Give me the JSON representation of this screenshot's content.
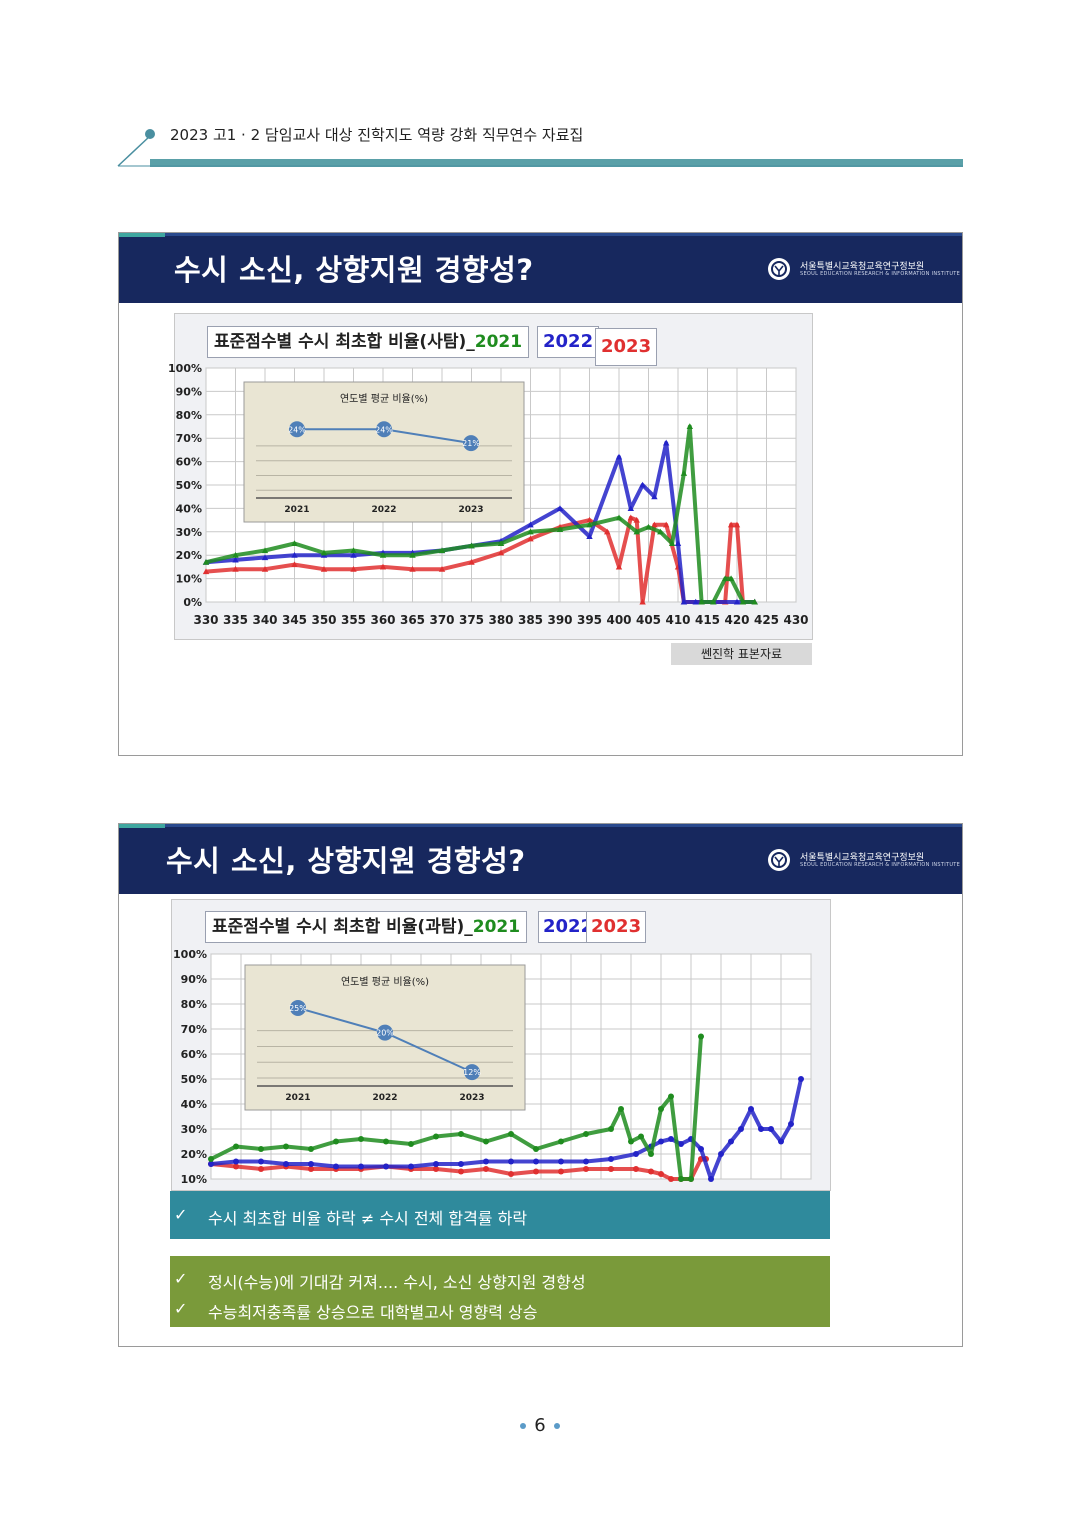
{
  "header": {
    "doc_title": "2023 고1 · 2 담임교사 대상 진학지도 역량 강화 직무연수 자료집"
  },
  "institute": {
    "name": "서울특별시교육청교육연구정보원",
    "name_en": "SEOUL EDUCATION RESEARCH & INFORMATION INSTITUTE"
  },
  "slide1": {
    "title": "수시 소신, 상향지원 경향성?",
    "chart_title": "표준점수별 수시 최초합 비율(사탐)_",
    "year_2021": "2021",
    "year_2022": "2022",
    "year_2023": "2023",
    "source": "쎈진학 표본자료"
  },
  "slide2": {
    "title": "수시 소신, 상향지원 경향성?",
    "chart_title": "표준점수별 수시 최초합 비율(과탐)_",
    "year_2021": "2021",
    "year_2022": "2022",
    "year_2023": "2023",
    "bullet1": "수시 최초합 비율 하락 ≠ 수시 전체 합격률 하락",
    "bullet2": "정시(수능)에 기대감 커져.... 수시, 소신 상향지원 경향성",
    "bullet3": "수능최저충족률 상승으로 대학별고사 영향력 상승",
    "check": "✓"
  },
  "colors": {
    "y2021": "#1f8c1f",
    "y2022": "#2323c8",
    "y2023": "#e03030",
    "navy": "#17285e",
    "teal_bar": "#2f8a9c",
    "green_bar": "#7a9a3a"
  },
  "page": {
    "number": "6"
  },
  "chart_data": [
    {
      "type": "line",
      "title": "표준점수별 수시 최초합 비율(사탐)_2021 2022 2023",
      "x_ticks": [
        330,
        335,
        340,
        345,
        350,
        355,
        360,
        365,
        370,
        375,
        380,
        385,
        390,
        395,
        400,
        405,
        410,
        415,
        420,
        425,
        430
      ],
      "y_ticks": [
        "0%",
        "10%",
        "20%",
        "30%",
        "40%",
        "50%",
        "60%",
        "70%",
        "80%",
        "90%",
        "100%"
      ],
      "xlim": [
        330,
        430
      ],
      "ylim": [
        0,
        100
      ],
      "grid": true,
      "series": [
        {
          "name": "2021",
          "color": "#1f8c1f",
          "x": [
            330,
            335,
            340,
            345,
            350,
            355,
            360,
            365,
            370,
            375,
            380,
            385,
            390,
            395,
            400,
            403,
            405,
            407,
            409,
            411,
            412,
            414,
            416,
            418,
            419,
            421,
            423
          ],
          "values": [
            17,
            20,
            22,
            25,
            21,
            22,
            20,
            20,
            22,
            24,
            25,
            30,
            31,
            33,
            36,
            30,
            32,
            30,
            25,
            55,
            75,
            0,
            0,
            10,
            10,
            0,
            0
          ]
        },
        {
          "name": "2022",
          "color": "#2323c8",
          "x": [
            330,
            335,
            340,
            345,
            350,
            355,
            360,
            365,
            370,
            375,
            380,
            385,
            390,
            395,
            400,
            402,
            404,
            406,
            408,
            410,
            411,
            413,
            416,
            420,
            423
          ],
          "values": [
            17,
            18,
            19,
            20,
            20,
            20,
            21,
            21,
            22,
            24,
            26,
            33,
            40,
            28,
            62,
            40,
            50,
            45,
            68,
            25,
            0,
            0,
            0,
            0,
            0
          ]
        },
        {
          "name": "2023",
          "color": "#e03030",
          "x": [
            330,
            335,
            340,
            345,
            350,
            355,
            360,
            365,
            370,
            375,
            380,
            385,
            390,
            395,
            398,
            400,
            402,
            403,
            404,
            406,
            408,
            410,
            411,
            414,
            418,
            419,
            420,
            421,
            423
          ],
          "values": [
            13,
            14,
            14,
            16,
            14,
            14,
            15,
            14,
            14,
            17,
            21,
            27,
            32,
            35,
            30,
            15,
            36,
            35,
            0,
            33,
            33,
            15,
            0,
            0,
            0,
            33,
            33,
            0,
            0
          ]
        }
      ],
      "inset": {
        "title": "연도별 평균 비율(%)",
        "categories": [
          "2021",
          "2022",
          "2023"
        ],
        "values": [
          24,
          24,
          21
        ],
        "labels": [
          "24%",
          "24%",
          "21%"
        ]
      }
    },
    {
      "type": "line",
      "title": "표준점수별 수시 최초합 비율(과탐)_2021 2022 2023",
      "y_ticks": [
        "10%",
        "20%",
        "30%",
        "40%",
        "50%",
        "60%",
        "70%",
        "80%",
        "90%",
        "100%"
      ],
      "ylim": [
        10,
        100
      ],
      "grid": true,
      "series": [
        {
          "name": "2021",
          "color": "#1f8c1f",
          "x": [
            0,
            5,
            10,
            15,
            20,
            25,
            30,
            35,
            40,
            45,
            50,
            55,
            60,
            65,
            70,
            75,
            80,
            82,
            84,
            86,
            88,
            90,
            92,
            94,
            96,
            98
          ],
          "values": [
            18,
            23,
            22,
            23,
            22,
            25,
            26,
            25,
            24,
            27,
            28,
            25,
            28,
            22,
            25,
            28,
            30,
            38,
            25,
            27,
            20,
            38,
            43,
            8,
            8,
            67
          ]
        },
        {
          "name": "2022",
          "color": "#2323c8",
          "x": [
            0,
            5,
            10,
            15,
            20,
            25,
            30,
            35,
            40,
            45,
            50,
            55,
            60,
            65,
            70,
            75,
            80,
            85,
            88,
            90,
            92,
            94,
            96,
            98,
            100,
            102,
            104,
            106,
            108,
            110,
            112,
            114,
            116,
            118
          ],
          "values": [
            16,
            17,
            17,
            16,
            16,
            15,
            15,
            15,
            15,
            16,
            16,
            17,
            17,
            17,
            17,
            17,
            18,
            20,
            23,
            25,
            26,
            24,
            26,
            22,
            8,
            20,
            25,
            30,
            38,
            30,
            30,
            25,
            32,
            50
          ]
        },
        {
          "name": "2023",
          "color": "#e03030",
          "x": [
            0,
            5,
            10,
            15,
            20,
            25,
            30,
            35,
            40,
            45,
            50,
            55,
            60,
            65,
            70,
            75,
            80,
            85,
            88,
            90,
            92,
            94,
            96,
            98,
            99
          ],
          "values": [
            16,
            15,
            14,
            15,
            14,
            14,
            14,
            15,
            14,
            14,
            13,
            14,
            12,
            13,
            13,
            14,
            14,
            14,
            13,
            12,
            8,
            8,
            8,
            18,
            18
          ]
        }
      ],
      "inset": {
        "title": "연도별 평균 비율(%)",
        "categories": [
          "2021",
          "2022",
          "2023"
        ],
        "values": [
          25,
          20,
          12
        ],
        "labels": [
          "25%",
          "20%",
          "12%"
        ]
      }
    }
  ]
}
